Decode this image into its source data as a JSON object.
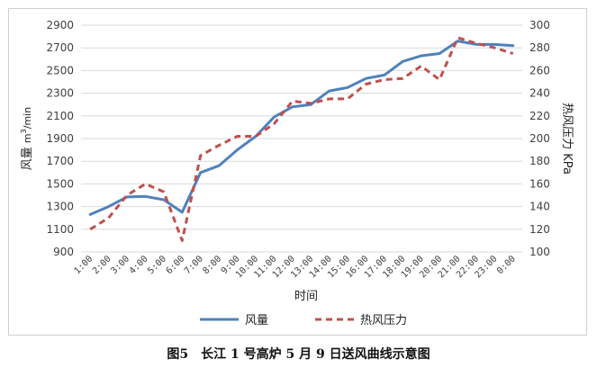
{
  "chart_data": {
    "type": "line",
    "xlabel": "时间",
    "ylabel_left_main": "风量",
    "ylabel_left_unit_pre": "m",
    "ylabel_left_unit_sup": "3",
    "ylabel_left_unit_post": "/min",
    "ylabel_right": "热风压力  KPa",
    "categories": [
      "1:00",
      "2:00",
      "3:00",
      "4:00",
      "5:00",
      "6:00",
      "7:00",
      "8:00",
      "9:00",
      "10:00",
      "11:00",
      "12:00",
      "13:00",
      "14:00",
      "15:00",
      "16:00",
      "17:00",
      "18:00",
      "19:00",
      "20:00",
      "21:00",
      "22:00",
      "23:00",
      "0:00"
    ],
    "ylim_left": [
      900,
      2900
    ],
    "yticks_left": [
      900,
      1100,
      1300,
      1500,
      1700,
      1900,
      2100,
      2300,
      2500,
      2700,
      2900
    ],
    "ylim_right": [
      100,
      300
    ],
    "yticks_right": [
      100,
      120,
      140,
      160,
      180,
      200,
      220,
      240,
      260,
      280,
      300
    ],
    "grid": true,
    "legend_position": "bottom",
    "series": [
      {
        "name": "风量",
        "axis": "left",
        "style": "solid",
        "color": "#4f81bd",
        "values": [
          1230,
          1300,
          1385,
          1390,
          1360,
          1250,
          1600,
          1660,
          1800,
          1920,
          2090,
          2180,
          2200,
          2320,
          2350,
          2430,
          2460,
          2580,
          2630,
          2650,
          2760,
          2730,
          2730,
          2720
        ]
      },
      {
        "name": "热风压力",
        "axis": "right",
        "style": "dashed",
        "color": "#c0504d",
        "values": [
          120,
          130,
          150,
          160,
          153,
          110,
          185,
          194,
          202,
          202,
          213,
          233,
          231,
          235,
          235,
          248,
          252,
          253,
          264,
          252,
          289,
          284,
          280,
          275
        ]
      }
    ]
  },
  "caption": "图5　长江 1 号高炉 5 月 9 日送风曲线示意图"
}
